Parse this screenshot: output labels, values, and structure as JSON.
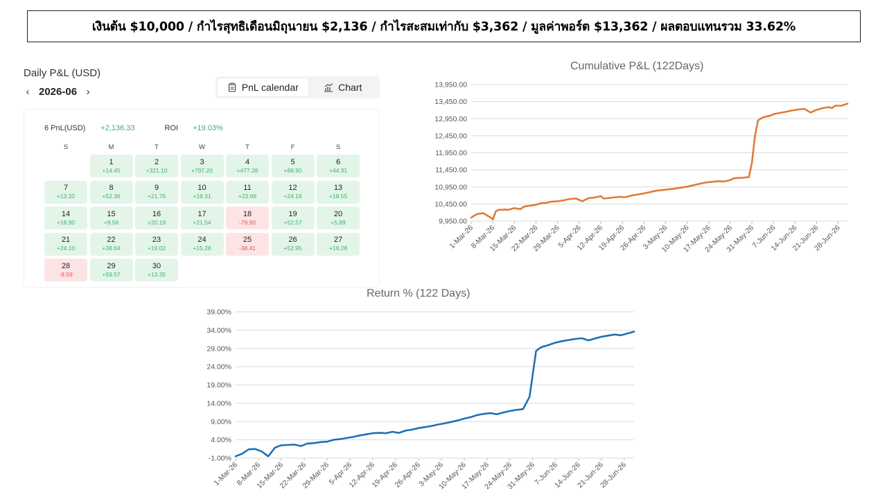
{
  "banner": {
    "text": "เงินต้น $10,000  /  กำไรสุทธิเดือนมิถุนายน $2,136  /  กำไรสะสมเท่ากับ $3,362  /  มูลค่าพอร์ต $13,362 / ผลตอบแทนรวม 33.62%"
  },
  "pnl": {
    "title": "Daily P&L (USD)",
    "month": "2026-06",
    "prev_arrow": "‹",
    "next_arrow": "›",
    "toggle": {
      "calendar_label": "PnL calendar",
      "chart_label": "Chart",
      "active": "calendar"
    },
    "stats": {
      "pnl_label": "6 PnL(USD)",
      "pnl_value": "+2,136.33",
      "roi_label": "ROI",
      "roi_value": "+19.03%"
    },
    "weekdays": [
      "S",
      "M",
      "T",
      "W",
      "T",
      "F",
      "S"
    ],
    "first_weekday": 1,
    "days": [
      {
        "day": "1",
        "value": "+14.45"
      },
      {
        "day": "2",
        "value": "+321.10"
      },
      {
        "day": "3",
        "value": "+797.20"
      },
      {
        "day": "4",
        "value": "+477.28"
      },
      {
        "day": "5",
        "value": "+68.90"
      },
      {
        "day": "6",
        "value": "+44.31"
      },
      {
        "day": "7",
        "value": "+13.32"
      },
      {
        "day": "8",
        "value": "+52.36"
      },
      {
        "day": "9",
        "value": "+21.76"
      },
      {
        "day": "10",
        "value": "+18.31"
      },
      {
        "day": "11",
        "value": "+23.66"
      },
      {
        "day": "12",
        "value": "+24.19"
      },
      {
        "day": "13",
        "value": "+18.55"
      },
      {
        "day": "14",
        "value": "+18.90"
      },
      {
        "day": "15",
        "value": "+9.56"
      },
      {
        "day": "16",
        "value": "+20.19"
      },
      {
        "day": "17",
        "value": "+21.54"
      },
      {
        "day": "18",
        "value": "-79.90"
      },
      {
        "day": "19",
        "value": "+52.57"
      },
      {
        "day": "20",
        "value": "+5.89"
      },
      {
        "day": "21",
        "value": "+24.10"
      },
      {
        "day": "22",
        "value": "+38.64"
      },
      {
        "day": "23",
        "value": "+19.02"
      },
      {
        "day": "24",
        "value": "+15.28"
      },
      {
        "day": "25",
        "value": "-38.41"
      },
      {
        "day": "26",
        "value": "+52.95"
      },
      {
        "day": "27",
        "value": "+16.28"
      },
      {
        "day": "28",
        "value": "-8.59"
      },
      {
        "day": "29",
        "value": "+59.57"
      },
      {
        "day": "30",
        "value": "+13.35"
      }
    ],
    "colors": {
      "positive_bg": "#e3f5e9",
      "negative_bg": "#fde4e4",
      "positive_text": "#3fb06b",
      "negative_text": "#e0575b"
    }
  },
  "chart_data": [
    {
      "type": "line",
      "title": "Cumulative P&L (122Days)",
      "color": "#e07b39",
      "ylim": [
        9950,
        13950
      ],
      "y_ticks": [
        "13,950.00",
        "13,450.00",
        "12,950.00",
        "12,450.00",
        "11,950.00",
        "11,450.00",
        "10,950.00",
        "10,450.00",
        "9,950.00"
      ],
      "x_ticks": [
        "1-Mar-26",
        "8-Mar-26",
        "15-Mar-26",
        "22-Mar-26",
        "29-Mar-26",
        "5-Apr-26",
        "12-Apr-26",
        "19-Apr-26",
        "26-Apr-26",
        "3-May-26",
        "10-May-26",
        "17-May-26",
        "24-May-26",
        "31-May-26",
        "7-Jun-26",
        "14-Jun-26",
        "21-Jun-26",
        "28-Jun-26"
      ],
      "grid": true,
      "x": [
        0,
        1,
        2,
        3,
        4,
        5,
        6,
        7,
        8,
        9,
        10,
        11,
        12,
        14,
        16,
        17,
        18,
        20,
        21,
        23,
        24,
        26,
        28,
        30,
        32,
        34,
        36,
        38,
        40,
        42,
        43,
        44,
        46,
        48,
        50,
        52,
        54,
        56,
        58,
        60,
        62,
        64,
        66,
        68,
        70,
        72,
        74,
        76,
        78,
        80,
        82,
        84,
        85,
        86,
        88,
        90,
        91,
        92,
        93,
        94,
        95,
        96,
        97,
        98,
        100,
        102,
        104,
        106,
        108,
        110,
        112,
        114,
        116,
        117,
        118,
        120,
        122
      ],
      "y": [
        10050,
        10110,
        10160,
        10170,
        10180,
        10120,
        10070,
        10000,
        10240,
        10280,
        10280,
        10290,
        10280,
        10330,
        10300,
        10370,
        10390,
        10410,
        10430,
        10480,
        10480,
        10520,
        10530,
        10560,
        10600,
        10610,
        10530,
        10620,
        10640,
        10680,
        10610,
        10620,
        10640,
        10660,
        10650,
        10700,
        10730,
        10760,
        10800,
        10840,
        10860,
        10880,
        10900,
        10930,
        10960,
        11000,
        11040,
        11080,
        11100,
        11120,
        11110,
        11150,
        11200,
        11210,
        11220,
        11240,
        11650,
        12450,
        12900,
        12960,
        13000,
        13020,
        13040,
        13080,
        13120,
        13150,
        13190,
        13220,
        13240,
        13130,
        13210,
        13260,
        13290,
        13260,
        13330,
        13330,
        13390
      ]
    },
    {
      "type": "line",
      "title": "Return %  (122 Days)",
      "color": "#1f6fb5",
      "ylim": [
        -1,
        39
      ],
      "y_ticks": [
        "39.00%",
        "34.00%",
        "29.00%",
        "24.00%",
        "19.00%",
        "14.00%",
        "9.00%",
        "4.00%",
        "-1.00%"
      ],
      "x_ticks": [
        "1-Mar-26",
        "8-Mar-26",
        "15-Mar-26",
        "22-Mar-26",
        "29-Mar-26",
        "5-Apr-26",
        "12-Apr-26",
        "19-Apr-26",
        "26-Apr-26",
        "3-May-26",
        "10-May-26",
        "17-May-26",
        "24-May-26",
        "31-May-26",
        "7-Jun-26",
        "14-Jun-26",
        "21-Jun-26",
        "28-Jun-26"
      ],
      "grid": true,
      "x": [
        0,
        2,
        4,
        6,
        8,
        10,
        12,
        13,
        14,
        16,
        18,
        20,
        22,
        24,
        26,
        28,
        30,
        32,
        34,
        36,
        38,
        40,
        42,
        44,
        46,
        48,
        50,
        52,
        54,
        56,
        58,
        60,
        62,
        64,
        66,
        68,
        70,
        72,
        74,
        76,
        78,
        80,
        82,
        84,
        86,
        88,
        90,
        92,
        93,
        94,
        95,
        96,
        97,
        98,
        100,
        102,
        104,
        106,
        108,
        110,
        112,
        114,
        116,
        118,
        120,
        122
      ],
      "y": [
        -0.5,
        0.2,
        1.4,
        1.5,
        0.8,
        -0.5,
        1.8,
        2.2,
        2.5,
        2.6,
        2.7,
        2.3,
        3.0,
        3.1,
        3.4,
        3.5,
        4.0,
        4.2,
        4.5,
        4.8,
        5.2,
        5.5,
        5.8,
        5.9,
        5.8,
        6.2,
        5.9,
        6.5,
        6.8,
        7.2,
        7.5,
        7.8,
        8.2,
        8.5,
        8.9,
        9.3,
        9.8,
        10.2,
        10.8,
        11.1,
        11.3,
        11.0,
        11.5,
        11.9,
        12.2,
        12.4,
        15.8,
        28.3,
        29.0,
        29.5,
        29.7,
        30.0,
        30.3,
        30.6,
        31.0,
        31.3,
        31.6,
        31.8,
        31.2,
        31.7,
        32.2,
        32.5,
        32.8,
        32.6,
        33.1,
        33.6
      ]
    }
  ]
}
